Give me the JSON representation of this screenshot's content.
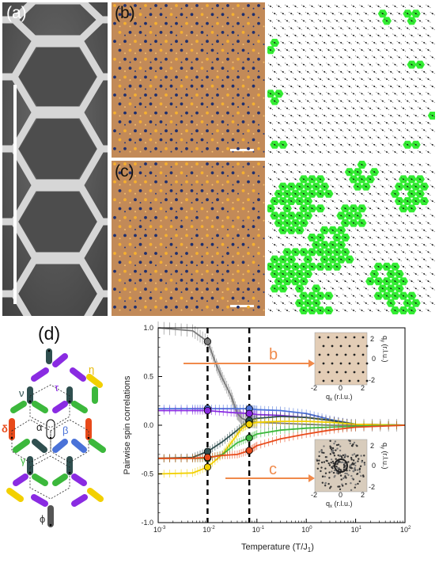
{
  "panels": {
    "a": "(a)",
    "b": "(b)",
    "c": "(c)",
    "d": "(d)"
  },
  "lattice_labels": {
    "tau": "τ",
    "eta": "η",
    "nu": "ν",
    "delta": "δ",
    "alpha": "α",
    "beta": "β",
    "gamma": "γ",
    "phi": "ϕ"
  },
  "colors": {
    "purple": "#8a2be2",
    "yellow": "#f2d000",
    "green": "#3cb83c",
    "darkslate": "#2f4f4f",
    "blue": "#4a72d8",
    "red": "#e84a1a",
    "gray": "#7a7a7a",
    "orange_arrow": "#f08a4b",
    "bright_green": "#33ee33"
  },
  "chart_data": {
    "type": "line",
    "xlabel": "Temperature (T/J",
    "xlabel_sub": "1",
    "xlabel_end": ")",
    "ylabel": "Pairwise spin correlations",
    "xscale": "log",
    "xlim": [
      0.001,
      100
    ],
    "ylim": [
      -1.0,
      1.0
    ],
    "xticks": [
      {
        "base": "10",
        "exp": "-3",
        "v": 0.001
      },
      {
        "base": "10",
        "exp": "-2",
        "v": 0.01
      },
      {
        "base": "10",
        "exp": "-1",
        "v": 0.1
      },
      {
        "base": "10",
        "exp": "0",
        "v": 1
      },
      {
        "base": "10",
        "exp": "1",
        "v": 10
      },
      {
        "base": "10",
        "exp": "2",
        "v": 100
      }
    ],
    "yticks": [
      "1.0",
      "0.5",
      "0.0",
      "-0.5",
      "-1.0"
    ],
    "ytick_values": [
      1.0,
      0.5,
      0.0,
      -0.5,
      -1.0
    ],
    "vlines": [
      0.01,
      0.07
    ],
    "annotations": {
      "b": "b",
      "c": "c"
    },
    "insets": {
      "xlabel": "q",
      "xlabel_sub": "x",
      "xlabel_unit": " (r.l.u.)",
      "ylabel": "q",
      "ylabel_sub": "y",
      "ylabel_unit": " (r.l.u.)",
      "ticks": [
        "-2",
        "0",
        "2"
      ]
    },
    "series": [
      {
        "color": "#7a7a7a",
        "x": [
          0.001,
          0.005,
          0.01,
          0.015,
          0.02,
          0.03,
          0.04,
          0.05,
          0.07,
          0.1,
          0.3,
          1,
          3,
          10,
          100
        ],
        "y": [
          1.0,
          0.97,
          0.86,
          0.62,
          0.48,
          0.3,
          0.12,
          0.07,
          0.04,
          0.03,
          0.02,
          0.01,
          0.0,
          0.0,
          0.0
        ]
      },
      {
        "color": "#4a72d8",
        "x": [
          0.001,
          0.005,
          0.01,
          0.03,
          0.07,
          0.1,
          0.3,
          1,
          3,
          10,
          100
        ],
        "y": [
          0.17,
          0.17,
          0.17,
          0.17,
          0.17,
          0.16,
          0.15,
          0.12,
          0.06,
          0.01,
          0.0
        ]
      },
      {
        "color": "#8a2be2",
        "x": [
          0.001,
          0.005,
          0.01,
          0.03,
          0.07,
          0.1,
          0.3,
          1,
          3,
          10,
          100
        ],
        "y": [
          0.15,
          0.15,
          0.15,
          0.13,
          0.12,
          0.11,
          0.1,
          0.08,
          0.05,
          0.01,
          0.0
        ]
      },
      {
        "color": "#2f4f4f",
        "x": [
          0.001,
          0.005,
          0.01,
          0.02,
          0.04,
          0.07,
          0.1,
          0.3,
          1,
          3,
          10,
          100
        ],
        "y": [
          -0.34,
          -0.33,
          -0.27,
          -0.17,
          -0.05,
          0.05,
          0.07,
          0.09,
          0.08,
          0.05,
          0.01,
          0.0
        ]
      },
      {
        "color": "#f2d000",
        "x": [
          0.001,
          0.005,
          0.01,
          0.02,
          0.03,
          0.05,
          0.07,
          0.1,
          0.3,
          1,
          3,
          10,
          100
        ],
        "y": [
          -0.5,
          -0.49,
          -0.43,
          -0.3,
          -0.18,
          -0.03,
          0.01,
          0.03,
          0.04,
          0.04,
          0.03,
          0.01,
          0.0
        ]
      },
      {
        "color": "#3cb83c",
        "x": [
          0.001,
          0.005,
          0.01,
          0.02,
          0.04,
          0.07,
          0.1,
          0.3,
          1,
          3,
          10,
          100
        ],
        "y": [
          -0.34,
          -0.34,
          -0.34,
          -0.3,
          -0.18,
          -0.13,
          -0.09,
          -0.05,
          -0.03,
          -0.02,
          -0.01,
          0.0
        ]
      },
      {
        "color": "#e84a1a",
        "x": [
          0.001,
          0.005,
          0.01,
          0.02,
          0.04,
          0.07,
          0.1,
          0.3,
          1,
          3,
          10,
          100
        ],
        "y": [
          -0.34,
          -0.34,
          -0.33,
          -0.31,
          -0.3,
          -0.26,
          -0.21,
          -0.14,
          -0.09,
          -0.05,
          -0.02,
          0.0
        ]
      }
    ]
  }
}
